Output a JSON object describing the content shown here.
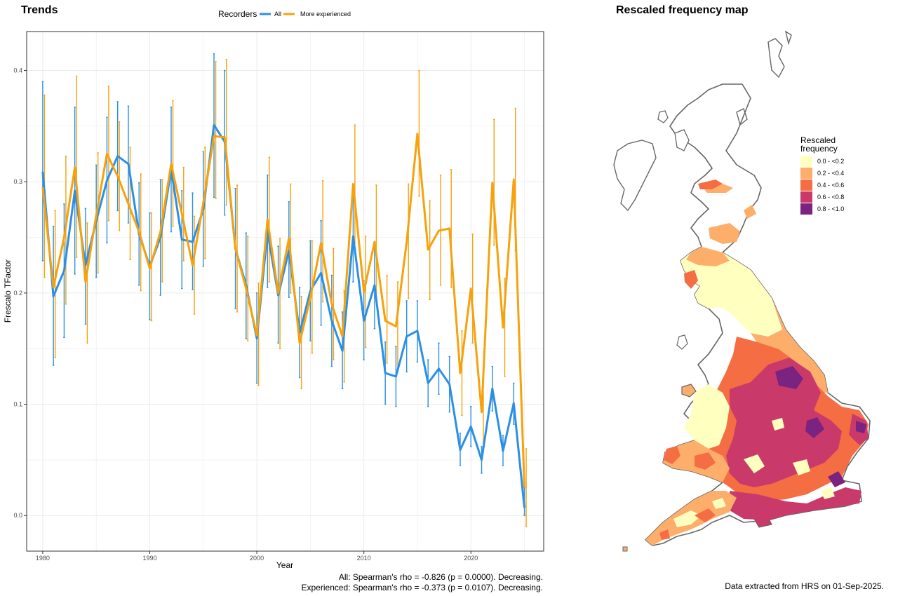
{
  "left_panel": {
    "title": "Trends",
    "legend_title": "Recorders",
    "captions": [
      "All: Spearman's rho = -0.826 (p = 0.0000). Decreasing.",
      "Experienced: Spearman's rho = -0.373 (p = 0.0107). Decreasing."
    ]
  },
  "right_panel": {
    "title": "Rescaled frequency map",
    "legend_title_lines": [
      "Rescaled",
      "frequency"
    ],
    "legend_items": [
      {
        "label": "0.0 - <0.2",
        "color": "#ffffbf"
      },
      {
        "label": "0.2 - <0.4",
        "color": "#fdae6b"
      },
      {
        "label": "0.4 - <0.6",
        "color": "#f46d43"
      },
      {
        "label": "0.6 - <0.8",
        "color": "#c93a6b"
      },
      {
        "label": "0.8 - <1.0",
        "color": "#7a2380"
      }
    ],
    "caption": "Data extracted from HRS on 01-Sep-2025."
  },
  "chart_data": {
    "type": "line",
    "title": "Trends",
    "xlabel": "Year",
    "ylabel": "Frescalo TFactor",
    "xlim": [
      1978.5,
      2026.8
    ],
    "ylim": [
      -0.032,
      0.435
    ],
    "xticks": [
      1980,
      1990,
      2000,
      2010,
      2020
    ],
    "yticks": [
      0.0,
      0.1,
      0.2,
      0.3,
      0.4
    ],
    "grid": true,
    "legend_position": "top",
    "x": [
      1980,
      1981,
      1982,
      1983,
      1984,
      1985,
      1986,
      1987,
      1988,
      1989,
      1990,
      1991,
      1992,
      1993,
      1994,
      1995,
      1996,
      1997,
      1998,
      1999,
      2000,
      2001,
      2002,
      2003,
      2004,
      2005,
      2006,
      2007,
      2008,
      2009,
      2010,
      2011,
      2012,
      2013,
      2014,
      2015,
      2016,
      2017,
      2018,
      2019,
      2020,
      2021,
      2022,
      2023,
      2024,
      2025
    ],
    "series": [
      {
        "name": "All",
        "color": "#2b8fe6",
        "values": [
          0.309,
          0.197,
          0.22,
          0.292,
          0.225,
          0.265,
          0.301,
          0.323,
          0.316,
          0.253,
          0.224,
          0.25,
          0.311,
          0.248,
          0.246,
          0.275,
          0.351,
          0.336,
          0.24,
          0.207,
          0.159,
          0.255,
          0.198,
          0.238,
          0.164,
          0.202,
          0.218,
          0.175,
          0.148,
          0.251,
          0.175,
          0.207,
          0.128,
          0.125,
          0.161,
          0.166,
          0.119,
          0.132,
          0.118,
          0.059,
          0.08,
          0.05,
          0.114,
          0.058,
          0.101,
          0.007
        ],
        "lower": [
          0.229,
          0.135,
          0.16,
          0.217,
          0.172,
          0.214,
          0.245,
          0.274,
          0.263,
          0.207,
          0.176,
          0.198,
          0.255,
          0.204,
          0.203,
          0.224,
          0.286,
          0.27,
          0.186,
          0.159,
          0.119,
          0.205,
          0.155,
          0.196,
          0.124,
          0.157,
          0.171,
          0.134,
          0.114,
          0.21,
          0.14,
          0.168,
          0.1,
          0.098,
          0.129,
          0.138,
          0.098,
          0.109,
          0.093,
          0.045,
          0.062,
          0.038,
          0.094,
          0.045,
          0.082,
          0.0
        ],
        "upper": [
          0.39,
          0.26,
          0.28,
          0.367,
          0.276,
          0.315,
          0.358,
          0.372,
          0.368,
          0.299,
          0.272,
          0.302,
          0.367,
          0.292,
          0.29,
          0.327,
          0.415,
          0.4,
          0.294,
          0.254,
          0.2,
          0.306,
          0.242,
          0.282,
          0.205,
          0.247,
          0.265,
          0.216,
          0.183,
          0.291,
          0.211,
          0.245,
          0.156,
          0.152,
          0.193,
          0.193,
          0.14,
          0.155,
          0.143,
          0.074,
          0.098,
          0.062,
          0.134,
          0.072,
          0.119,
          0.025
        ]
      },
      {
        "name": "More experienced",
        "color": "#f5a20d",
        "values": [
          0.295,
          0.205,
          0.25,
          0.313,
          0.21,
          0.27,
          0.325,
          0.305,
          0.28,
          0.255,
          0.222,
          0.255,
          0.316,
          0.271,
          0.225,
          0.281,
          0.341,
          0.34,
          0.24,
          0.204,
          0.162,
          0.266,
          0.2,
          0.249,
          0.155,
          0.196,
          0.245,
          0.19,
          0.161,
          0.298,
          0.201,
          0.246,
          0.175,
          0.17,
          0.246,
          0.343,
          0.239,
          0.256,
          0.258,
          0.128,
          0.204,
          0.093,
          0.299,
          0.169,
          0.302,
          0.025
        ],
        "lower": [
          0.214,
          0.142,
          0.19,
          0.232,
          0.155,
          0.218,
          0.265,
          0.256,
          0.23,
          0.202,
          0.175,
          0.21,
          0.26,
          0.229,
          0.181,
          0.231,
          0.285,
          0.279,
          0.183,
          0.157,
          0.117,
          0.21,
          0.15,
          0.2,
          0.114,
          0.146,
          0.192,
          0.14,
          0.12,
          0.245,
          0.151,
          0.197,
          0.137,
          0.13,
          0.195,
          0.287,
          0.194,
          0.207,
          0.205,
          0.09,
          0.155,
          0.065,
          0.243,
          0.125,
          0.238,
          -0.01
        ],
        "upper": [
          0.378,
          0.274,
          0.323,
          0.395,
          0.263,
          0.326,
          0.386,
          0.354,
          0.331,
          0.307,
          0.272,
          0.302,
          0.373,
          0.313,
          0.269,
          0.331,
          0.408,
          0.41,
          0.297,
          0.251,
          0.209,
          0.322,
          0.249,
          0.298,
          0.197,
          0.247,
          0.301,
          0.24,
          0.202,
          0.351,
          0.251,
          0.297,
          0.216,
          0.21,
          0.298,
          0.4,
          0.283,
          0.306,
          0.311,
          0.166,
          0.253,
          0.121,
          0.356,
          0.213,
          0.366,
          0.06
        ]
      }
    ]
  }
}
